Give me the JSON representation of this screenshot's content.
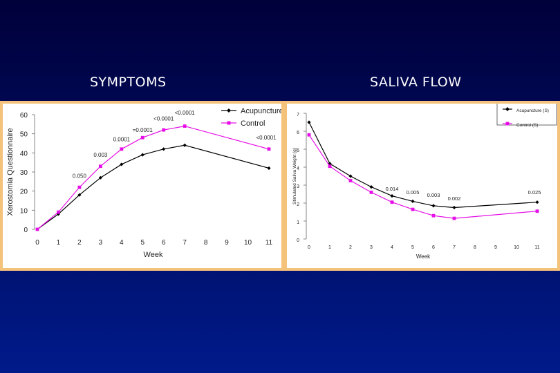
{
  "headings": {
    "left": "SYMPTOMS",
    "right": "SALIVA FLOW"
  },
  "colors": {
    "acupuncture": "#000000",
    "control": "#e60ee6",
    "frame": "#f4c27a"
  },
  "chart_data": [
    {
      "type": "line",
      "title": "SYMPTOMS",
      "xlabel": "Week",
      "ylabel": "Xerostomia Questionnaire",
      "xlim": [
        0,
        11
      ],
      "ylim": [
        0,
        60
      ],
      "xticks": [
        "0",
        "1",
        "2",
        "3",
        "4",
        "5",
        "6",
        "7",
        "8",
        "9",
        "10",
        "11"
      ],
      "yticks": [
        "0",
        "10",
        "20",
        "30",
        "40",
        "50",
        "60"
      ],
      "legend": {
        "position": "top-right",
        "entries": [
          "Acupuncture",
          "Control"
        ]
      },
      "series": [
        {
          "name": "Acupuncture",
          "x": [
            0,
            1,
            2,
            3,
            4,
            5,
            6,
            7,
            11
          ],
          "values": [
            0,
            8,
            18,
            27,
            34,
            39,
            42,
            44,
            32
          ]
        },
        {
          "name": "Control",
          "x": [
            0,
            1,
            2,
            3,
            4,
            5,
            6,
            7,
            11
          ],
          "values": [
            0,
            9,
            22,
            33,
            42,
            48,
            52,
            54,
            42
          ]
        }
      ],
      "annotations": [
        {
          "text": "0.050",
          "x": 2,
          "y": 27
        },
        {
          "text": "0.003",
          "x": 3,
          "y": 38
        },
        {
          "text": "0.0001",
          "x": 4,
          "y": 46
        },
        {
          "text": "=0.0001",
          "x": 5,
          "y": 51
        },
        {
          "text": "<0.0001",
          "x": 6,
          "y": 57
        },
        {
          "text": "<0.0001",
          "x": 7,
          "y": 60
        },
        {
          "text": "<0.0001",
          "x": 11,
          "y": 47
        }
      ]
    },
    {
      "type": "line",
      "title": "SALIVA FLOW",
      "xlabel": "Week",
      "ylabel": "Stimulated Saliva Weight (g)",
      "xlim": [
        0,
        11
      ],
      "ylim": [
        0,
        7
      ],
      "xticks": [
        "0",
        "1",
        "2",
        "3",
        "4",
        "5",
        "6",
        "7",
        "8",
        "9",
        "10",
        "11"
      ],
      "yticks": [
        "0",
        "1",
        "2",
        "3",
        "4",
        "5",
        "6",
        "7"
      ],
      "legend": {
        "position": "top-right",
        "entries": [
          "Acupuncture (S)",
          "Control (S)"
        ]
      },
      "series": [
        {
          "name": "Acupuncture (S)",
          "x": [
            0,
            1,
            2,
            3,
            4,
            5,
            6,
            7,
            11
          ],
          "values": [
            6.5,
            4.2,
            3.5,
            2.9,
            2.4,
            2.1,
            1.85,
            1.75,
            2.05
          ]
        },
        {
          "name": "Control (S)",
          "x": [
            0,
            1,
            2,
            3,
            4,
            5,
            6,
            7,
            11
          ],
          "values": [
            5.8,
            4.05,
            3.25,
            2.6,
            2.05,
            1.65,
            1.3,
            1.15,
            1.55
          ]
        }
      ],
      "annotations": [
        {
          "text": "0.014",
          "x": 4,
          "y": 2.7
        },
        {
          "text": "0.005",
          "x": 5,
          "y": 2.5
        },
        {
          "text": "0.003",
          "x": 6,
          "y": 2.35
        },
        {
          "text": "0.002",
          "x": 7,
          "y": 2.15
        },
        {
          "text": "0.025",
          "x": 11,
          "y": 2.5
        }
      ]
    }
  ]
}
